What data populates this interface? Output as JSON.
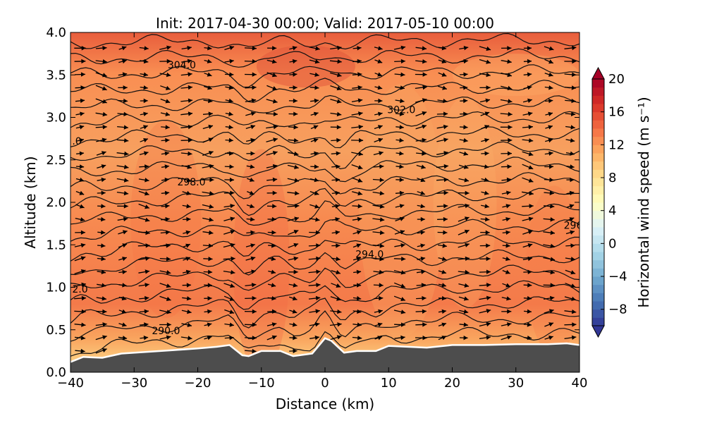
{
  "chart_data": {
    "type": "contour",
    "title": "Init: 2017-04-30 00:00; Valid: 2017-05-10 00:00",
    "xlabel": "Distance (km)",
    "ylabel": "Altitude (km)",
    "xlim": [
      -40,
      40
    ],
    "ylim": [
      0,
      4
    ],
    "xticks": [
      -40,
      -30,
      -20,
      -10,
      0,
      10,
      20,
      30,
      40
    ],
    "xtick_labels": [
      "−40",
      "−30",
      "−20",
      "−10",
      "0",
      "10",
      "20",
      "30",
      "40"
    ],
    "yticks": [
      0,
      0.5,
      1,
      1.5,
      2,
      2.5,
      3,
      3.5,
      4
    ],
    "ytick_labels": [
      "0.0",
      "0.5",
      "1.0",
      "1.5",
      "2.0",
      "2.5",
      "3.0",
      "3.5",
      "4.0"
    ],
    "colorbar": {
      "label": "Horizontal wind speed (m s⁻¹)",
      "range": [
        -10,
        20
      ],
      "ticks": [
        20,
        16,
        12,
        8,
        4,
        0,
        -4,
        -8
      ],
      "tick_labels": [
        "20",
        "16",
        "12",
        "8",
        "4",
        "0",
        "−4",
        "−8"
      ],
      "colors": [
        "#313695",
        "#4575b4",
        "#74add1",
        "#abd9e9",
        "#e0f3f8",
        "#ffffbf",
        "#fee090",
        "#fdae61",
        "#f46d43",
        "#d73027",
        "#a50026"
      ]
    },
    "isentrope_interval_K": 1,
    "contour_labels": [
      {
        "text": "304.0",
        "x": -22.5,
        "y": 3.62
      },
      {
        "text": "302.0",
        "x": 12,
        "y": 3.09
      },
      {
        "text": ".0",
        "x": -39,
        "y": 2.72
      },
      {
        "text": "298.0",
        "x": -21,
        "y": 2.24
      },
      {
        "text": "296",
        "x": 39,
        "y": 1.73
      },
      {
        "text": "294.0",
        "x": 7,
        "y": 1.39
      },
      {
        "text": "2.0",
        "x": -38.5,
        "y": 0.98
      },
      {
        "text": "290.0",
        "x": -25,
        "y": 0.49
      }
    ],
    "terrain_km": [
      [
        -40,
        0.12
      ],
      [
        -38,
        0.18
      ],
      [
        -35,
        0.17
      ],
      [
        -32,
        0.22
      ],
      [
        -28,
        0.24
      ],
      [
        -24,
        0.26
      ],
      [
        -20,
        0.28
      ],
      [
        -17,
        0.3
      ],
      [
        -15,
        0.32
      ],
      [
        -13,
        0.2
      ],
      [
        -12,
        0.19
      ],
      [
        -10,
        0.25
      ],
      [
        -7,
        0.25
      ],
      [
        -5,
        0.19
      ],
      [
        -2,
        0.22
      ],
      [
        0,
        0.4
      ],
      [
        1,
        0.37
      ],
      [
        2,
        0.3
      ],
      [
        3,
        0.23
      ],
      [
        5,
        0.25
      ],
      [
        8,
        0.25
      ],
      [
        10,
        0.31
      ],
      [
        13,
        0.3
      ],
      [
        16,
        0.29
      ],
      [
        20,
        0.32
      ],
      [
        25,
        0.32
      ],
      [
        30,
        0.33
      ],
      [
        35,
        0.33
      ],
      [
        38,
        0.34
      ],
      [
        40,
        0.32
      ]
    ],
    "terrain_color": "#4d4d4d"
  }
}
